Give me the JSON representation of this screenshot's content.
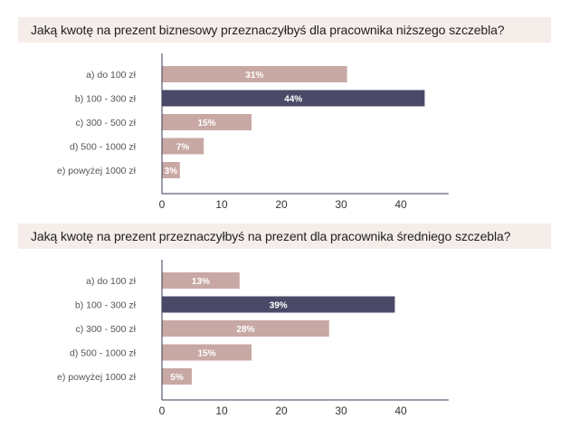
{
  "chart_data": [
    {
      "type": "bar",
      "orientation": "horizontal",
      "title": "Jaką kwotę na prezent biznesowy przeznaczyłbyś dla pracownika niższego szczebla?",
      "categories": [
        "a) do 100 zł",
        "b) 100 - 300 zł",
        "c) 300 - 500 zł",
        "d) 500 - 1000 zł",
        "e) powyżej 1000 zł"
      ],
      "values": [
        31,
        44,
        15,
        7,
        3
      ],
      "value_labels": [
        "31%",
        "44%",
        "15%",
        "7%",
        "3%"
      ],
      "highlight_index": 1,
      "xlim": [
        0,
        48
      ],
      "xticks": [
        0,
        10,
        20,
        30,
        40
      ],
      "xtick_labels": [
        "0",
        "10",
        "20",
        "30",
        "40"
      ],
      "grid": false
    },
    {
      "type": "bar",
      "orientation": "horizontal",
      "title": "Jaką kwotę na prezent przeznaczyłbyś na prezent dla pracownika średniego szczebla?",
      "categories": [
        "a) do 100 zł",
        "b) 100 - 300 zł",
        "c) 300 - 500 zł",
        "d) 500 - 1000 zł",
        "e) powyżej 1000 zł"
      ],
      "values": [
        13,
        39,
        28,
        15,
        5
      ],
      "value_labels": [
        "13%",
        "39%",
        "28%",
        "15%",
        "5%"
      ],
      "highlight_index": 1,
      "xlim": [
        0,
        48
      ],
      "xticks": [
        0,
        10,
        20,
        30,
        40
      ],
      "xtick_labels": [
        "0",
        "10",
        "20",
        "30",
        "40"
      ],
      "grid": false
    }
  ],
  "colors": {
    "bar": "#c8a8a4",
    "bar_highlight": "#4a4a68",
    "axis": "#3a3a5a",
    "title_band": "#f5ede9"
  }
}
